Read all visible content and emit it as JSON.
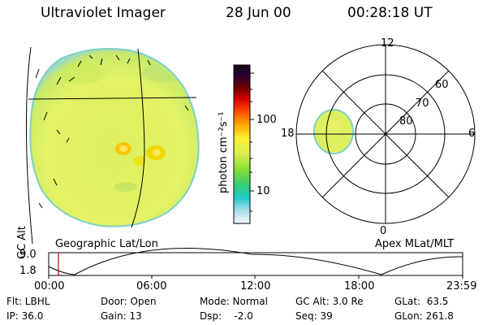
{
  "header": {
    "instrument": "Ultraviolet Imager",
    "date": "28 Jun 00",
    "time": "00:28:18 UT"
  },
  "colorbar": {
    "unit_label": "photon cm⁻²s⁻¹",
    "ticks": [
      "100",
      "10"
    ],
    "colors": [
      "#2a0a2a",
      "#000033",
      "#550000",
      "#cc0000",
      "#ff6600",
      "#ffbb00",
      "#ffee33",
      "#ddf060",
      "#99dd44",
      "#44cc66",
      "#22cccc",
      "#99ddee",
      "#e8f0f4",
      "#ffffff"
    ]
  },
  "geo_panel": {
    "label": "Geographic Lat/Lon"
  },
  "polar_panel": {
    "label": "Apex MLat/MLT",
    "mlt_labels": {
      "top": "12",
      "left": "18",
      "right": "6",
      "bottom": "0"
    },
    "lat_labels": [
      "60",
      "70",
      "80"
    ]
  },
  "altitude_plot": {
    "axis_label": "GC Alt",
    "y_ticks": [
      "9.0",
      "1.8"
    ],
    "x_ticks": [
      "00:00",
      "06:00",
      "12:00",
      "18:00",
      "23:59"
    ]
  },
  "info": {
    "flt": "Flt: LBHL",
    "ip": "IP: 36.0",
    "door": "Door: Open",
    "gain": "Gain: 13",
    "mode": "Mode: Normal",
    "dsp": "Dsp:    -2.0",
    "gcalt": "GC Alt: 3.0 Re",
    "seq": "Seq: 39",
    "glat": "GLat:  63.5",
    "glon": "GLon: 261.8"
  }
}
